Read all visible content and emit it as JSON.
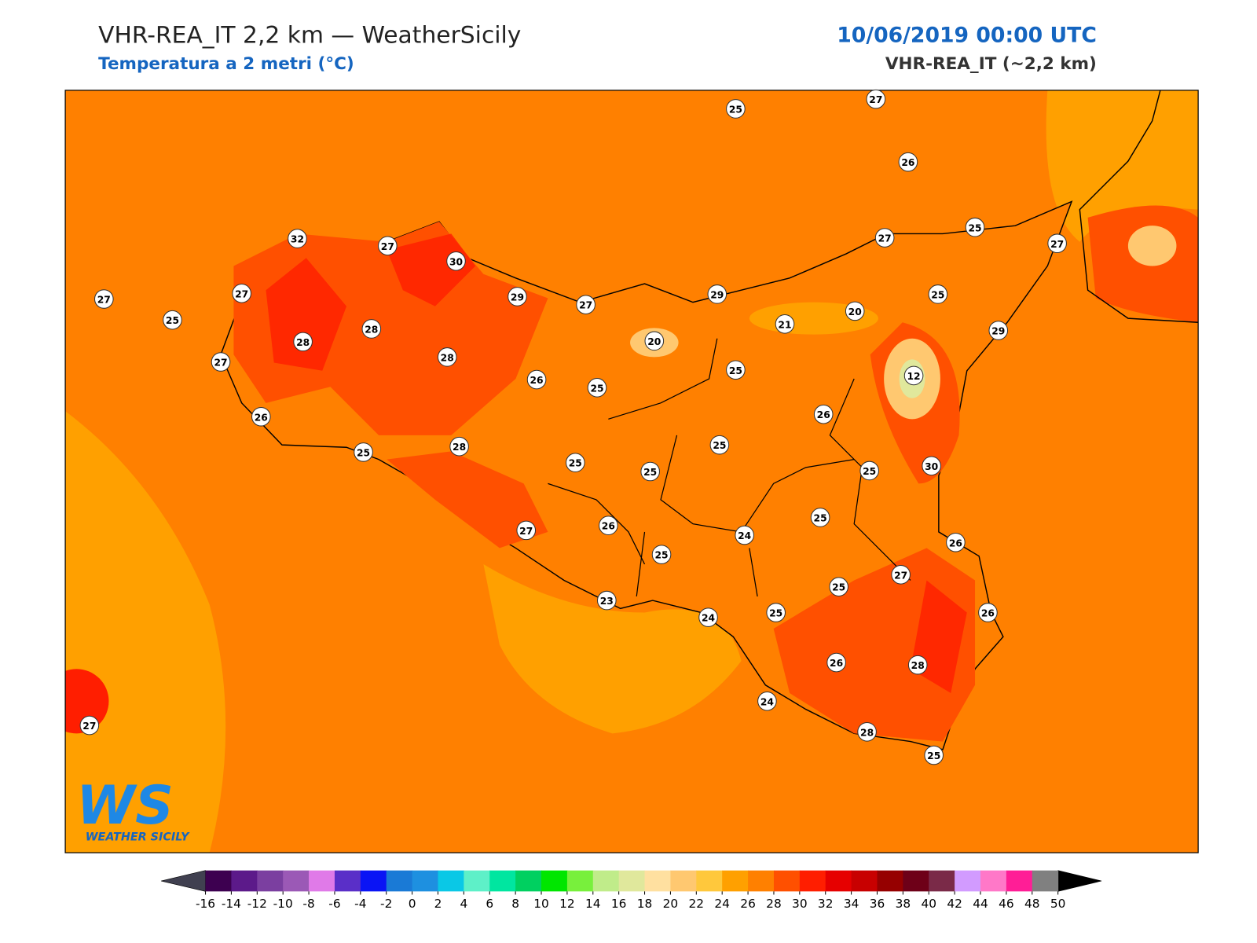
{
  "header": {
    "title": "VHR-REA_IT 2,2 km — WeatherSicily",
    "subtitle": "Temperatura a 2 metri (°C)",
    "datetime": "10/06/2019 00:00 UTC",
    "model": "VHR-REA_IT (~2,2 km)"
  },
  "logo": {
    "initials": "WS",
    "name": "WEATHER SICILY"
  },
  "stations": [
    25,
    27,
    26,
    32,
    27,
    30,
    27,
    25,
    27,
    27,
    25,
    27,
    29,
    27,
    29,
    25,
    20,
    21,
    28,
    28,
    20,
    29,
    27,
    28,
    26,
    25,
    25,
    12,
    26,
    26,
    25,
    28,
    25,
    25,
    25,
    25,
    30,
    25,
    27,
    26,
    24,
    26,
    25,
    27,
    25,
    23,
    24,
    25,
    26,
    26,
    28,
    24,
    28,
    25,
    27
  ],
  "colorbar": {
    "ticks": [
      -16,
      -14,
      -12,
      -10,
      -8,
      -6,
      -4,
      -2,
      0,
      2,
      4,
      6,
      8,
      10,
      12,
      14,
      16,
      18,
      20,
      22,
      24,
      26,
      28,
      30,
      32,
      34,
      36,
      38,
      40,
      42,
      44,
      46,
      48,
      50
    ],
    "colors": [
      "#3d0050",
      "#5c1a8a",
      "#7b3fa0",
      "#9b59b6",
      "#e07ae8",
      "#5a2fc8",
      "#0a14f5",
      "#1a7ad6",
      "#1e90e0",
      "#0ac8e6",
      "#5ef0c8",
      "#00e6a0",
      "#00d060",
      "#00e600",
      "#78f03c",
      "#c0ec8a",
      "#e0e89c",
      "#ffe0a0",
      "#ffc870",
      "#ffc83c",
      "#ffa000",
      "#ff8000",
      "#ff5000",
      "#ff1e00",
      "#e60000",
      "#c80000",
      "#960000",
      "#6e0018",
      "#7a2a48",
      "#d29bff",
      "#ff78c8",
      "#ff1e96",
      "#808080",
      "#3a3a3a"
    ],
    "under_color": "#404050",
    "over_color": "#000000"
  }
}
